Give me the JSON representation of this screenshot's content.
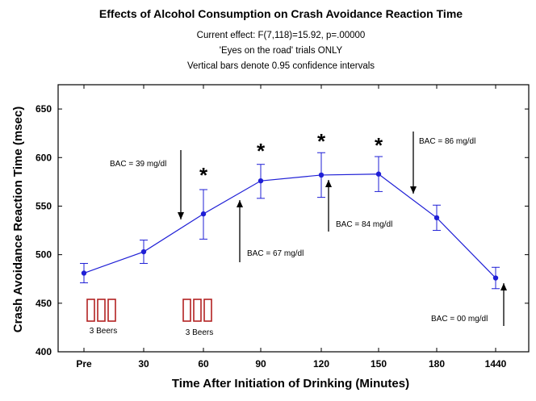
{
  "chart_data": {
    "type": "line",
    "title": "Effects of Alcohol Consumption on Crash Avoidance Reaction Time",
    "subtitles": [
      "Current effect: F(7,118)=15.92, p=.00000",
      "'Eyes on the road' trials ONLY",
      "Vertical bars denote 0.95 confidence intervals"
    ],
    "xlabel": "Time After Initiation of Drinking (Minutes)",
    "ylabel": "Crash Avoidance Reaction Time (msec)",
    "categories": [
      "Pre",
      "30",
      "60",
      "90",
      "120",
      "150",
      "180",
      "1440"
    ],
    "ylim": [
      400,
      675
    ],
    "yticks": [
      400,
      450,
      500,
      550,
      600,
      650
    ],
    "grid": false,
    "line_color": "#1f1fd6",
    "series": [
      {
        "values": [
          481,
          503,
          542,
          576,
          582,
          583,
          538,
          476
        ],
        "ci_low": [
          471,
          491,
          516,
          558,
          559,
          565,
          525,
          465
        ],
        "ci_high": [
          491,
          515,
          567,
          593,
          605,
          601,
          551,
          487
        ]
      }
    ],
    "significance_marker": "*",
    "significant_categories": [
      "60",
      "90",
      "120",
      "150"
    ],
    "annotations": [
      {
        "text": "BAC = 39 mg/dl"
      },
      {
        "text": "BAC = 67 mg/dl"
      },
      {
        "text": "BAC = 84 mg/dl"
      },
      {
        "text": "BAC = 86 mg/dl"
      },
      {
        "text": "BAC = 00 mg/dl"
      }
    ],
    "beer_groups": [
      {
        "label": "3 Beers",
        "count": 3
      },
      {
        "label": "3 Beers",
        "count": 3
      }
    ],
    "beer_color": "#b22222"
  }
}
